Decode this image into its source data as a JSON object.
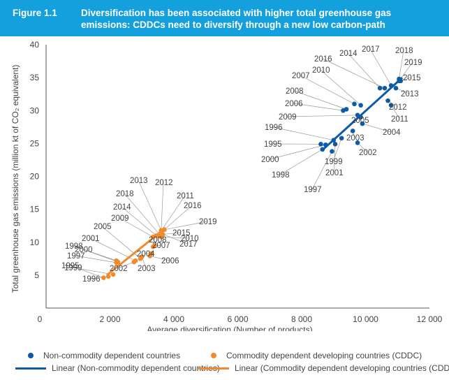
{
  "figure": {
    "label": "Figure 1.1",
    "title": "Diversification has been associated with higher total greenhouse gas emissions: CDDCs need to diversify through a new low carbon-path"
  },
  "colors": {
    "banner": "#14a0dc",
    "non_cddc": "#0d5ba6",
    "cddc": "#f18a2a",
    "leader": "#9a9a9a"
  },
  "chart_data": {
    "type": "scatter",
    "xlabel": "Average diversification (Number of products)",
    "ylabel": "Total greenhouse gas emissions (million kt of CO₂ equivalent)",
    "xlim": [
      0,
      12000
    ],
    "ylim": [
      0,
      40
    ],
    "x_ticks": [
      0,
      2000,
      4000,
      6000,
      8000,
      10000,
      12000
    ],
    "x_tick_labels": [
      "0",
      "2 000",
      "4 000",
      "6 000",
      "8 000",
      "10 000",
      "12 000"
    ],
    "y_ticks": [
      5,
      10,
      15,
      20,
      25,
      30,
      35,
      40
    ],
    "y_tick_labels": [
      "5",
      "10",
      "15",
      "20",
      "25",
      "30",
      "35",
      "40"
    ],
    "grid": false,
    "legend_position": "bottom",
    "series": [
      {
        "name": "Non-commodity dependent countries",
        "points": [
          {
            "label": "1995",
            "x": 8600,
            "y": 24.9
          },
          {
            "label": "1996",
            "x": 9000,
            "y": 25.5
          },
          {
            "label": "1997",
            "x": 8950,
            "y": 23.8
          },
          {
            "label": "1998",
            "x": 8650,
            "y": 24.1
          },
          {
            "label": "1999",
            "x": 9250,
            "y": 25.8
          },
          {
            "label": "2000",
            "x": 8750,
            "y": 24.8
          },
          {
            "label": "2001",
            "x": 9050,
            "y": 24.9
          },
          {
            "label": "2002",
            "x": 9750,
            "y": 25.1
          },
          {
            "label": "2003",
            "x": 9600,
            "y": 26.9
          },
          {
            "label": "2004",
            "x": 9900,
            "y": 28.0
          },
          {
            "label": "2005",
            "x": 9850,
            "y": 29.0
          },
          {
            "label": "2006",
            "x": 9300,
            "y": 30.0
          },
          {
            "label": "2007",
            "x": 9650,
            "y": 31.0
          },
          {
            "label": "2008",
            "x": 9400,
            "y": 30.2
          },
          {
            "label": "2009",
            "x": 9750,
            "y": 29.3
          },
          {
            "label": "2010",
            "x": 9850,
            "y": 30.8
          },
          {
            "label": "2011",
            "x": 10800,
            "y": 30.8
          },
          {
            "label": "2012",
            "x": 10700,
            "y": 31.5
          },
          {
            "label": "2013",
            "x": 10950,
            "y": 33.4
          },
          {
            "label": "2014",
            "x": 10450,
            "y": 33.4
          },
          {
            "label": "2015",
            "x": 11100,
            "y": 34.5
          },
          {
            "label": "2016",
            "x": 10600,
            "y": 33.4
          },
          {
            "label": "2017",
            "x": 10800,
            "y": 33.8
          },
          {
            "label": "2018",
            "x": 11050,
            "y": 34.8
          },
          {
            "label": "2019",
            "x": 11050,
            "y": 34.5
          }
        ]
      },
      {
        "name": "Commodity dependent developing countries (CDDC)",
        "points": [
          {
            "label": "1995",
            "x": 1800,
            "y": 4.6
          },
          {
            "label": "1996",
            "x": 1950,
            "y": 4.8
          },
          {
            "label": "1997",
            "x": 2200,
            "y": 6.9
          },
          {
            "label": "1998",
            "x": 2200,
            "y": 7.2
          },
          {
            "label": "1999",
            "x": 2100,
            "y": 5.1
          },
          {
            "label": "2000",
            "x": 2250,
            "y": 7.0
          },
          {
            "label": "2001",
            "x": 2800,
            "y": 7.2
          },
          {
            "label": "2002",
            "x": 2750,
            "y": 7.0
          },
          {
            "label": "2003",
            "x": 3000,
            "y": 7.8
          },
          {
            "label": "2004",
            "x": 3300,
            "y": 8.3
          },
          {
            "label": "2005",
            "x": 2950,
            "y": 7.5
          },
          {
            "label": "2006",
            "x": 3250,
            "y": 7.9
          },
          {
            "label": "2007",
            "x": 3350,
            "y": 9.3
          },
          {
            "label": "2008",
            "x": 3400,
            "y": 9.5
          },
          {
            "label": "2009",
            "x": 3350,
            "y": 10.8
          },
          {
            "label": "2010",
            "x": 3600,
            "y": 10.8
          },
          {
            "label": "2011",
            "x": 3500,
            "y": 11.0
          },
          {
            "label": "2012",
            "x": 3600,
            "y": 11.5
          },
          {
            "label": "2013",
            "x": 3600,
            "y": 11.8
          },
          {
            "label": "2014",
            "x": 3450,
            "y": 11.0
          },
          {
            "label": "2015",
            "x": 3650,
            "y": 11.2
          },
          {
            "label": "2016",
            "x": 3700,
            "y": 11.9
          },
          {
            "label": "2017",
            "x": 3650,
            "y": 11.2
          },
          {
            "label": "2018",
            "x": 3550,
            "y": 11.2
          },
          {
            "label": "2019",
            "x": 3700,
            "y": 11.9
          }
        ]
      }
    ],
    "trendlines": [
      {
        "name": "Linear (Non-commodity dependent countries)",
        "x": [
          8650,
          11150
        ],
        "y": [
          24.0,
          35.0
        ]
      },
      {
        "name": "Linear (Commodity dependent developing countries (CDDC))",
        "x": [
          1900,
          3700
        ],
        "y": [
          5.0,
          12.0
        ]
      }
    ]
  }
}
